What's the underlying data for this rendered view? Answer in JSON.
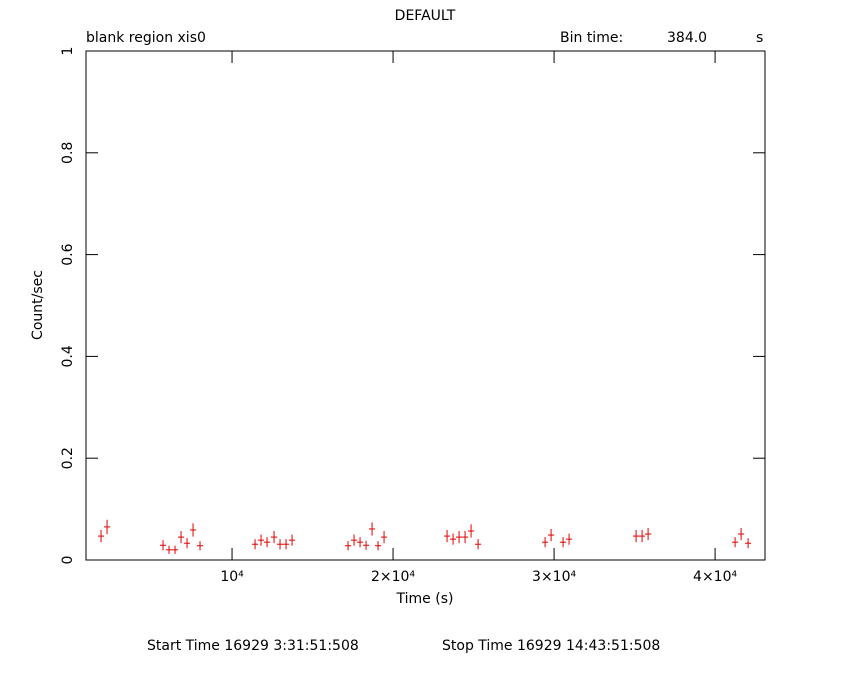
{
  "chart_data": {
    "type": "scatter",
    "title": "DEFAULT",
    "subtitle": "blank region  xis0",
    "bin_time_label": "Bin time:",
    "bin_time": "384.0",
    "bin_time_unit": "s",
    "x_label": "Time (s)",
    "y_label": "Count/sec",
    "start_time": "Start Time 16929  3:31:51:508",
    "stop_time": "Stop Time 16929 14:43:51:508",
    "xlim": [
      930,
      43100
    ],
    "ylim": [
      0,
      1
    ],
    "xticks": [
      {
        "value": 10000,
        "label": "10⁴"
      },
      {
        "value": 20000,
        "label": "2×10⁴"
      },
      {
        "value": 30000,
        "label": "3×10⁴"
      },
      {
        "value": 40000,
        "label": "4×10⁴"
      }
    ],
    "yticks": [
      0,
      0.2,
      0.4,
      0.6,
      0.8,
      1
    ],
    "series": [
      {
        "color": "#e00000",
        "xerr": 192,
        "x": [
          1864,
          2237,
          5714,
          6087,
          6460,
          6832,
          7205,
          7578,
          8012,
          11429,
          11801,
          12174,
          12609,
          12981,
          13354,
          13727,
          17205,
          17578,
          17950,
          18323,
          18696,
          19068,
          19441,
          23354,
          23727,
          24099,
          24472,
          24845,
          25280,
          29441,
          29814,
          30559,
          30932,
          35093,
          35466,
          35839,
          41242,
          41615,
          42050
        ],
        "values": [
          0.047,
          0.065,
          0.029,
          0.02,
          0.02,
          0.045,
          0.033,
          0.059,
          0.028,
          0.031,
          0.039,
          0.035,
          0.045,
          0.031,
          0.031,
          0.039,
          0.028,
          0.039,
          0.035,
          0.029,
          0.061,
          0.028,
          0.045,
          0.047,
          0.041,
          0.045,
          0.045,
          0.057,
          0.031,
          0.035,
          0.049,
          0.035,
          0.041,
          0.047,
          0.047,
          0.051,
          0.035,
          0.051,
          0.033
        ],
        "yerr": [
          0.012,
          0.014,
          0.01,
          0.008,
          0.008,
          0.012,
          0.01,
          0.013,
          0.009,
          0.01,
          0.011,
          0.01,
          0.012,
          0.01,
          0.01,
          0.011,
          0.009,
          0.011,
          0.01,
          0.009,
          0.013,
          0.009,
          0.012,
          0.012,
          0.011,
          0.012,
          0.012,
          0.013,
          0.01,
          0.01,
          0.012,
          0.01,
          0.011,
          0.012,
          0.012,
          0.012,
          0.01,
          0.012,
          0.01
        ]
      }
    ]
  }
}
